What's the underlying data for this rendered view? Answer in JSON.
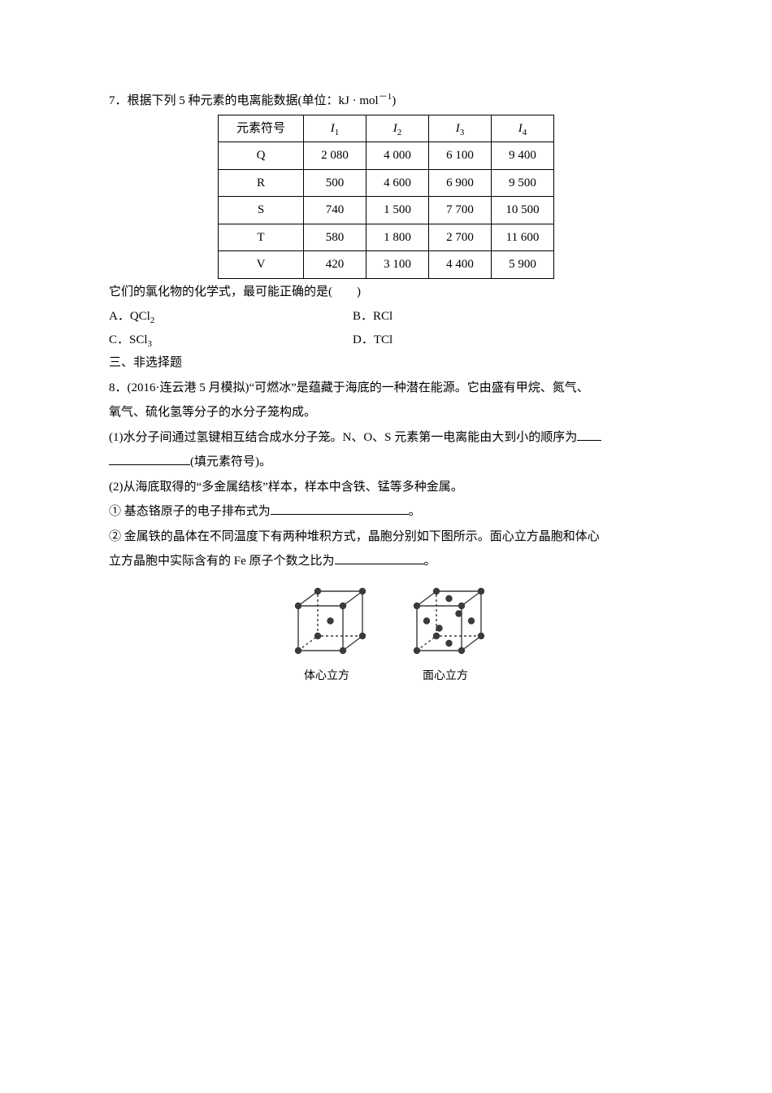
{
  "q7": {
    "number": "7．",
    "stem_before_unit": "根据下列 5 种元素的电离能数据(单位：kJ",
    "unit_dot": "·",
    "unit_mol": "mol",
    "unit_exp": "－1",
    "stem_close": ")",
    "table": {
      "header_col0": "元素符号",
      "header_I_letter": "I",
      "header_subs": [
        "1",
        "2",
        "3",
        "4"
      ],
      "rows": [
        {
          "sym": "Q",
          "v": [
            "2 080",
            "4 000",
            "6 100",
            "9 400"
          ]
        },
        {
          "sym": "R",
          "v": [
            "500",
            "4 600",
            "6 900",
            "9 500"
          ]
        },
        {
          "sym": "S",
          "v": [
            "740",
            "1 500",
            "7 700",
            "10 500"
          ]
        },
        {
          "sym": "T",
          "v": [
            "580",
            "1 800",
            "2 700",
            "11 600"
          ]
        },
        {
          "sym": "V",
          "v": [
            "420",
            "3 100",
            "4 400",
            "5 900"
          ]
        }
      ],
      "border_color": "#000000",
      "font_size": 15
    },
    "post_table": "它们的氯化物的化学式，最可能正确的是(　　)",
    "options": {
      "A_prefix": "A．",
      "A_sym": "QCl",
      "A_sub": "2",
      "B_prefix": "B．",
      "B_sym": "RCl",
      "B_sub": "",
      "C_prefix": "C．",
      "C_sym": "SCl",
      "C_sub": "3",
      "D_prefix": "D．",
      "D_sym": "TCl",
      "D_sub": ""
    }
  },
  "section3": "三、非选择题",
  "q8": {
    "line1": "8．(2016·连云港 5 月模拟)“可燃冰”是蕴藏于海底的一种潜在能源。它由盛有甲烷、氮气、",
    "line1b": "氧气、硫化氢等分子的水分子笼构成。",
    "p1a": "(1)水分子间通过氢键相互结合成水分子笼。N、O、S 元素第一电离能由大到小的顺序为",
    "p1b_tail": "(填元素符号)。",
    "p2": "(2)从海底取得的“多金属结核”样本，样本中含铁、锰等多种金属。",
    "p2_1a": "① 基态铬原子的电子排布式为",
    "p2_1b": "。",
    "p2_2a": "② 金属铁的晶体在不同温度下有两种堆积方式，晶胞分别如下图所示。面心立方晶胞和体心",
    "p2_2b_a": "立方晶胞中实际含有的 Fe 原子个数之比为",
    "p2_2b_b": "。"
  },
  "crystals": {
    "bcc_caption": "体心立方",
    "fcc_caption": "面心立方",
    "stroke": "#3a3a3a",
    "dash": "3,3",
    "atom_r": 4.2,
    "atom_fill": "#3a3a3a"
  }
}
